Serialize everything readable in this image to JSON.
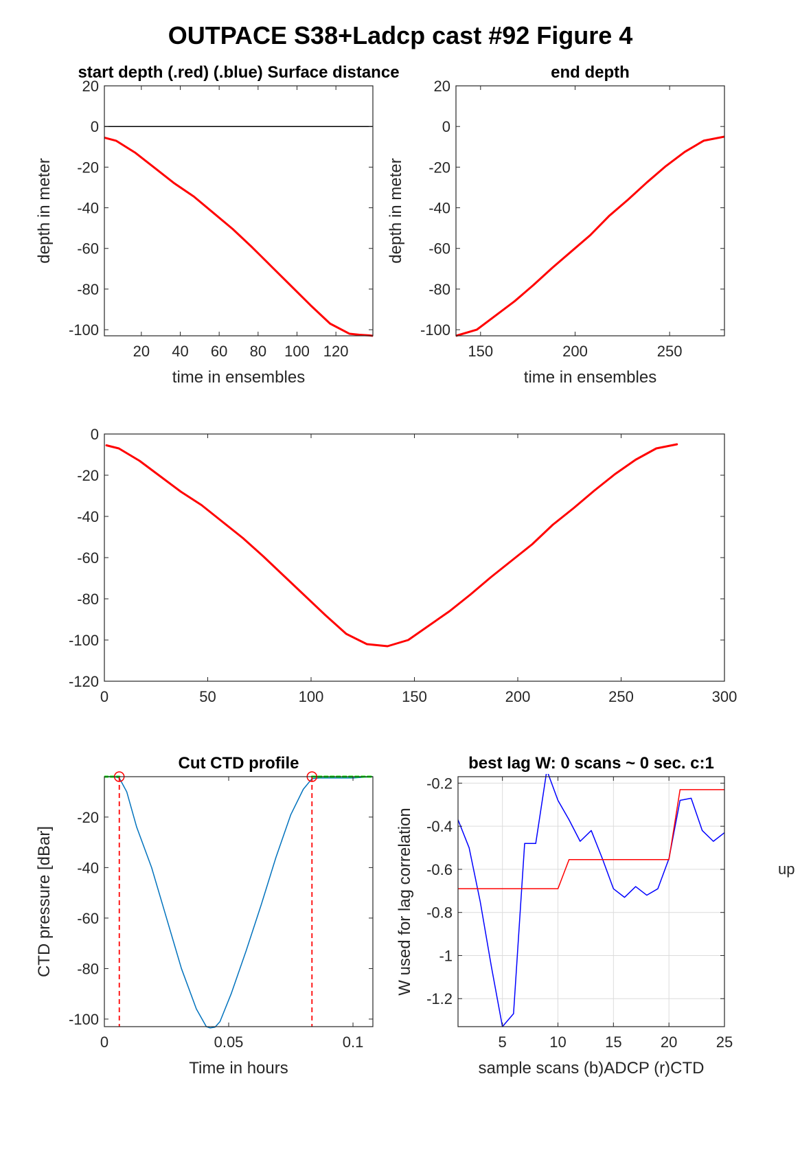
{
  "figure_title": "OUTPACE S38+Ladcp cast #92   Figure 4",
  "side_label": "up",
  "colors": {
    "red": "#ff0000",
    "blue": "#0000ff",
    "ctd": "#0072bd",
    "green": "#00ff00",
    "grid": "#dcdcdc"
  },
  "chart_data": [
    {
      "id": "p1",
      "type": "line",
      "title": "start depth (.red) (.blue) Surface distance",
      "xlabel": "time in ensembles",
      "ylabel": "depth in meter",
      "xlim": [
        1,
        139
      ],
      "ylim": [
        -103,
        20
      ],
      "xticks": [
        20,
        40,
        60,
        80,
        100,
        120
      ],
      "yticks": [
        20,
        0,
        -20,
        -40,
        -60,
        -80,
        -100
      ],
      "grid": false,
      "series": [
        {
          "color": "red",
          "width": 3,
          "x": [
            1,
            7,
            17,
            27,
            37,
            47,
            57,
            67,
            77,
            87,
            97,
            107,
            117,
            127,
            132,
            137,
            139
          ],
          "y": [
            -5.5,
            -7,
            -13,
            -20.5,
            -28,
            -34.5,
            -42.5,
            -50.5,
            -59.5,
            -69,
            -78.5,
            -88,
            -97,
            -102,
            -102.5,
            -102.8,
            -103
          ]
        },
        {
          "color": "black",
          "width": 1.5,
          "x": [
            1,
            139
          ],
          "y": [
            0,
            0
          ]
        }
      ]
    },
    {
      "id": "p2",
      "type": "line",
      "title": "end depth",
      "xlabel": "time in ensembles",
      "ylabel": "depth in meter",
      "xlim": [
        137,
        279
      ],
      "ylim": [
        -103,
        20
      ],
      "xticks": [
        150,
        200,
        250
      ],
      "yticks": [
        20,
        0,
        -20,
        -40,
        -60,
        -80,
        -100
      ],
      "grid": false,
      "series": [
        {
          "color": "red",
          "width": 3,
          "x": [
            137,
            148,
            158,
            168,
            178,
            188,
            198,
            208,
            218,
            228,
            238,
            248,
            258,
            268,
            279
          ],
          "y": [
            -103,
            -100,
            -93,
            -86,
            -78,
            -69.5,
            -61.5,
            -53.5,
            -44,
            -36,
            -27.5,
            -19.5,
            -12.5,
            -7,
            -5
          ]
        }
      ]
    },
    {
      "id": "p3",
      "type": "line",
      "title": "",
      "xlabel": "",
      "ylabel": "",
      "xlim": [
        0,
        300
      ],
      "ylim": [
        -120,
        0
      ],
      "xticks": [
        0,
        50,
        100,
        150,
        200,
        250,
        300
      ],
      "yticks": [
        0,
        -20,
        -40,
        -60,
        -80,
        -100,
        -120
      ],
      "grid": false,
      "series": [
        {
          "color": "red",
          "width": 3,
          "x": [
            1,
            7,
            17,
            27,
            37,
            47,
            57,
            67,
            77,
            87,
            97,
            107,
            117,
            127,
            137,
            147,
            157,
            167,
            177,
            187,
            197,
            207,
            217,
            227,
            237,
            247,
            257,
            267,
            277
          ],
          "y": [
            -5.5,
            -7,
            -13,
            -20.5,
            -28,
            -34.5,
            -42.5,
            -50.5,
            -59.5,
            -69,
            -78.5,
            -88,
            -97,
            -102,
            -103,
            -100,
            -93,
            -86,
            -78,
            -69.5,
            -61.5,
            -53.5,
            -44,
            -36,
            -27.5,
            -19.5,
            -12.5,
            -7,
            -5
          ]
        }
      ]
    },
    {
      "id": "p4",
      "type": "line",
      "title": "Cut CTD profile",
      "xlabel": "Time in hours",
      "ylabel": "CTD pressure [dBar]",
      "xlim": [
        0,
        0.108
      ],
      "ylim": [
        -103,
        -4
      ],
      "xticks": [
        0,
        0.05,
        0.1
      ],
      "yticks": [
        -20,
        -40,
        -60,
        -80,
        -100
      ],
      "grid": false,
      "series": [
        {
          "color": "ctd",
          "width": 1.5,
          "x": [
            0,
            0.004,
            0.006,
            0.009,
            0.013,
            0.019,
            0.025,
            0.031,
            0.037,
            0.041,
            0.0425,
            0.0445,
            0.0465,
            0.051,
            0.057,
            0.063,
            0.069,
            0.075,
            0.08,
            0.0835,
            0.0865,
            0.09,
            0.1,
            0.103,
            0.108
          ],
          "y": [
            -4,
            -4,
            -4.5,
            -10,
            -24,
            -40,
            -60,
            -80,
            -96,
            -103,
            -103.5,
            -103.2,
            -101,
            -90,
            -73,
            -55,
            -36,
            -19,
            -9,
            -4.8,
            -4.5,
            -4.5,
            -4.5,
            -4.3,
            -4
          ]
        },
        {
          "color": "green",
          "width": 3,
          "dash": "5 4",
          "x": [
            0,
            0.006
          ],
          "y": [
            -4,
            -4
          ]
        },
        {
          "color": "green",
          "width": 3,
          "dash": "5 4",
          "x": [
            0.0835,
            0.108
          ],
          "y": [
            -4,
            -4
          ]
        }
      ],
      "vlines": [
        {
          "color": "red",
          "dash": "7 5",
          "x": 0.006
        },
        {
          "color": "red",
          "dash": "7 5",
          "x": 0.0835
        }
      ],
      "markers": [
        {
          "color": "red",
          "x": 0.006,
          "y": -4
        },
        {
          "color": "red",
          "x": 0.0835,
          "y": -4
        }
      ]
    },
    {
      "id": "p5",
      "type": "line",
      "title": "best lag W: 0 scans ~ 0 sec.  c:1",
      "xlabel": "sample scans (b)ADCP (r)CTD",
      "ylabel": "W used for lag correlation",
      "xlim": [
        1,
        25
      ],
      "ylim": [
        -1.33,
        -0.17
      ],
      "xticks": [
        5,
        10,
        15,
        20,
        25
      ],
      "yticks": [
        -0.2,
        -0.4,
        -0.6,
        -0.8,
        -1,
        -1.2
      ],
      "grid": true,
      "series": [
        {
          "color": "blue",
          "width": 1.5,
          "x": [
            1,
            2,
            3,
            4,
            5,
            6,
            7,
            8,
            9,
            10,
            11,
            12,
            13,
            14,
            15,
            16,
            17,
            18,
            19,
            20,
            21,
            22,
            23,
            24,
            25
          ],
          "y": [
            -0.37,
            -0.5,
            -0.75,
            -1.05,
            -1.33,
            -1.27,
            -0.48,
            -0.48,
            -0.14,
            -0.28,
            -0.37,
            -0.47,
            -0.42,
            -0.55,
            -0.69,
            -0.73,
            -0.68,
            -0.72,
            -0.69,
            -0.55,
            -0.28,
            -0.27,
            -0.42,
            -0.47,
            -0.43
          ]
        },
        {
          "color": "red",
          "width": 1.5,
          "x": [
            1,
            10,
            11,
            20,
            21,
            25
          ],
          "y": [
            -0.69,
            -0.69,
            -0.555,
            -0.555,
            -0.23,
            -0.23
          ]
        }
      ]
    }
  ]
}
